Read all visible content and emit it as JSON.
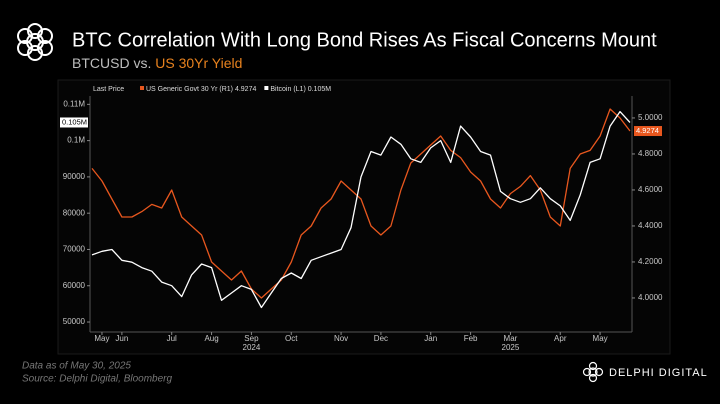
{
  "chart_data": {
    "type": "line",
    "title": "BTC Correlation With Long Bond Rises As Fiscal Concerns Mount",
    "subtitle": [
      "BTCUSD vs.",
      "US 30Yr Yield"
    ],
    "legend_title": "Last Price",
    "categories": [
      null,
      "May",
      null,
      "Jun",
      null,
      null,
      null,
      null,
      "Jul",
      null,
      null,
      null,
      "Aug",
      null,
      null,
      null,
      "Sep",
      null,
      null,
      null,
      "Oct",
      null,
      null,
      null,
      null,
      "Nov",
      null,
      null,
      null,
      "Dec",
      null,
      null,
      null,
      null,
      "Jan",
      null,
      null,
      null,
      "Feb",
      null,
      null,
      null,
      "Mar",
      null,
      null,
      null,
      null,
      "Apr",
      null,
      null,
      null,
      "May",
      null,
      null,
      null
    ],
    "sub_labels": [
      null,
      null,
      null,
      null,
      null,
      null,
      null,
      null,
      null,
      null,
      null,
      null,
      null,
      null,
      null,
      null,
      "2024",
      null,
      null,
      null,
      null,
      null,
      null,
      null,
      null,
      null,
      null,
      null,
      null,
      null,
      null,
      null,
      null,
      null,
      null,
      null,
      null,
      null,
      null,
      null,
      null,
      null,
      "2025",
      null,
      null,
      null,
      null,
      null,
      null,
      null,
      null,
      null,
      null,
      null,
      null
    ],
    "ylim": [
      47800,
      112300
    ],
    "yticks": [
      50000,
      60000,
      70000,
      80000,
      90000,
      {
        "value": 100000,
        "label": "0.1M"
      },
      {
        "value": 110000,
        "label": "0.11M"
      }
    ],
    "y2lim": [
      3.822,
      5.122
    ],
    "y2ticks": [
      {
        "value": 4,
        "label": "4.0000"
      },
      {
        "value": 4.2,
        "label": "4.2000"
      },
      {
        "value": 4.4,
        "label": "4.4000"
      },
      {
        "value": 4.6,
        "label": "4.6000"
      },
      {
        "value": 4.8,
        "label": "4.8000"
      },
      {
        "value": 5,
        "label": "5.0000"
      }
    ],
    "grid": false,
    "series": [
      {
        "name": "US Generic Govt 30 Yr (R1) 4.9274",
        "color": "#e8571e",
        "axis": "y2",
        "values": [
          4.72,
          4.65,
          4.55,
          4.45,
          4.45,
          4.48,
          4.52,
          4.5,
          4.6,
          4.45,
          4.4,
          4.35,
          4.2,
          4.15,
          4.1,
          4.15,
          4.05,
          4.0,
          4.05,
          4.1,
          4.2,
          4.35,
          4.4,
          4.5,
          4.55,
          4.65,
          4.6,
          4.55,
          4.4,
          4.35,
          4.4,
          4.6,
          4.75,
          4.8,
          4.85,
          4.9,
          4.82,
          4.78,
          4.7,
          4.65,
          4.55,
          4.5,
          4.58,
          4.62,
          4.68,
          4.6,
          4.45,
          4.4,
          4.72,
          4.8,
          4.82,
          4.9,
          5.05,
          5.0,
          4.9274
        ],
        "value_labels": [
          null,
          null,
          null,
          null,
          null,
          null,
          null,
          null,
          null,
          null,
          null,
          null,
          null,
          null,
          null,
          null,
          null,
          null,
          null,
          null,
          null,
          null,
          null,
          null,
          null,
          null,
          null,
          null,
          null,
          null,
          null,
          null,
          null,
          null,
          null,
          null,
          null,
          null,
          null,
          null,
          null,
          null,
          null,
          null,
          null,
          null,
          null,
          null,
          null,
          null,
          null,
          null,
          null,
          null,
          "4.9274"
        ]
      },
      {
        "name": "Bitcoin (L1) 0.105M",
        "color": "#ffffff",
        "axis": "y",
        "values": [
          68500,
          69500,
          70000,
          67000,
          66500,
          65000,
          64000,
          61000,
          60000,
          57000,
          63000,
          66000,
          65000,
          56000,
          58000,
          60000,
          59000,
          54000,
          58000,
          62000,
          63500,
          62000,
          67000,
          68000,
          69000,
          70000,
          76000,
          90000,
          97000,
          96000,
          101000,
          99000,
          95000,
          94000,
          98000,
          100000,
          94000,
          104000,
          101000,
          97000,
          96000,
          86000,
          84000,
          83000,
          84000,
          87000,
          84000,
          82000,
          78000,
          85000,
          94000,
          95000,
          104000,
          108000,
          105000
        ],
        "value_labels": [
          null,
          null,
          null,
          null,
          null,
          null,
          null,
          null,
          null,
          null,
          null,
          null,
          null,
          null,
          null,
          null,
          null,
          null,
          null,
          null,
          null,
          null,
          null,
          null,
          null,
          null,
          null,
          null,
          null,
          null,
          null,
          null,
          null,
          null,
          null,
          null,
          null,
          null,
          null,
          null,
          null,
          null,
          null,
          null,
          null,
          null,
          null,
          null,
          null,
          null,
          null,
          null,
          null,
          null,
          "0.105M"
        ]
      }
    ]
  },
  "footer": {
    "note": "Data as of May 30, 2025",
    "source": "Source: Delphi Digital, Bloomberg",
    "brand": "DELPHI DIGITAL"
  }
}
